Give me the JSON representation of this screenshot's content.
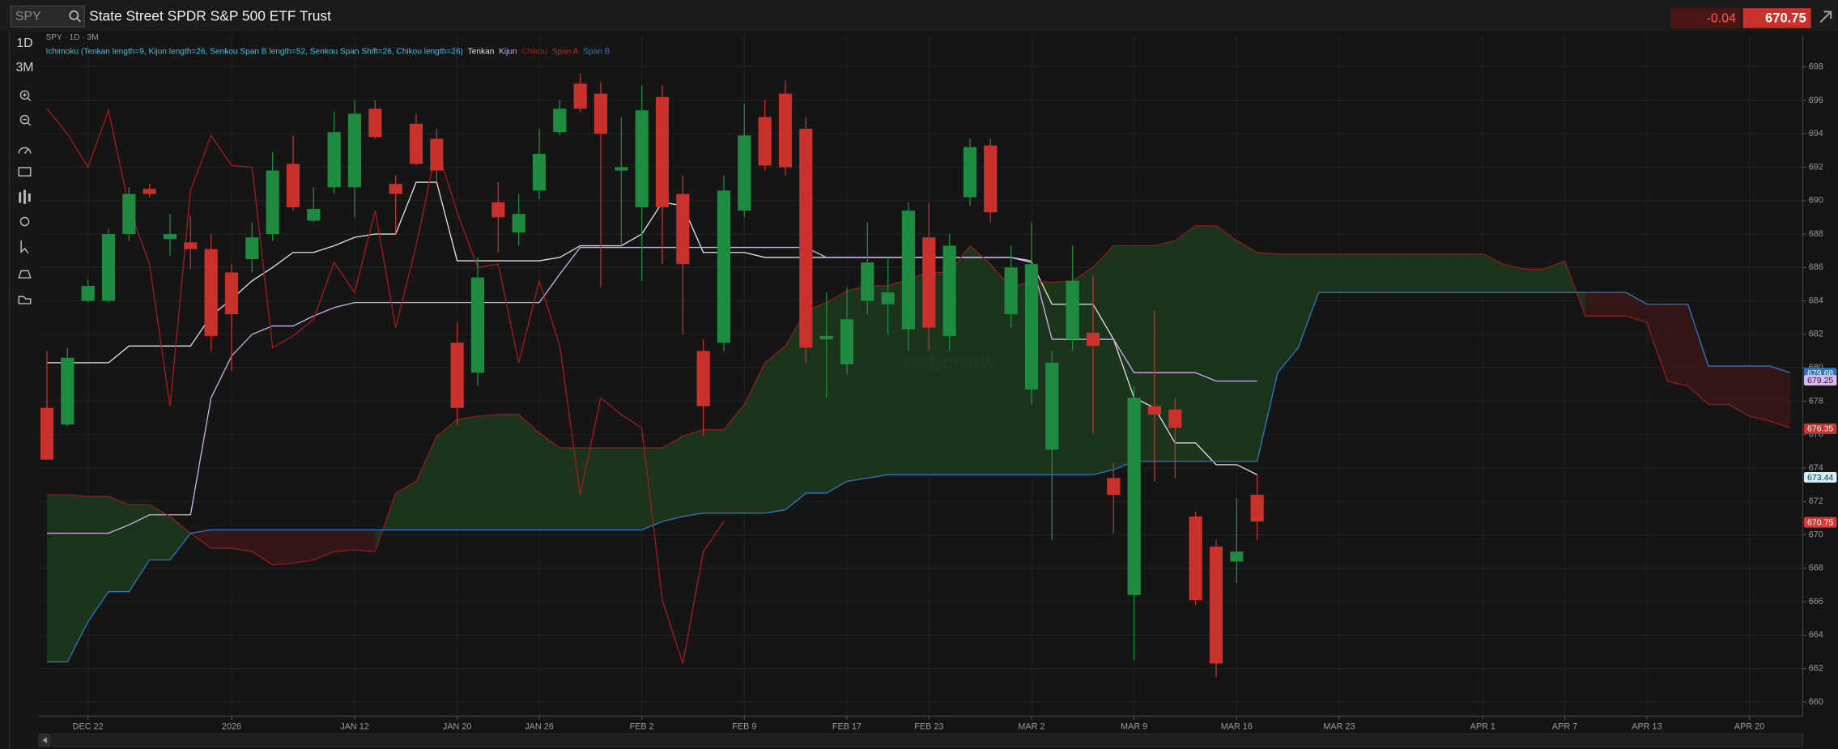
{
  "header": {
    "symbol": "SPY",
    "name": "State Street SPDR S&P 500 ETF Trust",
    "change": "-0.04",
    "price": "670.75"
  },
  "toolbar": {
    "timeframes": [
      "1D",
      "3M"
    ]
  },
  "chart_data": {
    "type": "candlestick",
    "subtitle": "SPY · 1D · 3M",
    "study": "Ichimoku (Tenkan length=9, Kijun length=26, Senkou Span B length=52, Senkou Span Shift=26, Chikou length=26)",
    "watermark": "tastycharts",
    "up_color": "#1f8b41",
    "down_color": "#c8312c",
    "cloud_up_color": "#1c3a1c",
    "cloud_down_color": "#3b1616",
    "open": [
      677.6,
      676.6,
      684.0,
      684.0,
      688.0,
      690.7,
      687.7,
      687.5,
      687.1,
      685.7,
      686.5,
      688.0,
      692.2,
      688.8,
      690.8,
      690.8,
      695.5,
      691.0,
      694.6,
      693.7,
      681.5,
      679.7,
      689.9,
      688.1,
      690.6,
      694.1,
      697.0,
      696.4,
      691.8,
      689.6,
      696.2,
      690.4,
      681.0,
      681.5,
      689.4,
      695.0,
      696.4,
      694.3,
      681.7,
      680.2,
      684.0,
      683.8,
      682.3,
      687.8,
      681.9,
      690.2,
      693.3,
      683.2,
      678.7,
      675.1,
      681.7,
      682.1,
      673.4,
      666.4,
      677.7,
      677.5,
      671.1,
      669.3,
      668.4,
      672.4
    ],
    "high": [
      681.0,
      681.2,
      685.3,
      688.3,
      690.8,
      691.0,
      689.2,
      689.1,
      688.0,
      686.2,
      688.7,
      692.9,
      693.9,
      690.8,
      695.3,
      696.0,
      696.0,
      691.5,
      695.2,
      694.3,
      682.7,
      686.6,
      691.1,
      690.4,
      694.3,
      696.0,
      697.6,
      697.1,
      695.0,
      696.9,
      696.9,
      691.5,
      681.7,
      691.5,
      695.8,
      696.0,
      697.2,
      695.0,
      684.5,
      684.8,
      688.7,
      686.6,
      689.9,
      689.9,
      688.0,
      693.7,
      693.7,
      687.3,
      688.7,
      681.0,
      687.3,
      685.5,
      674.3,
      678.9,
      683.4,
      678.2,
      671.4,
      669.7,
      672.2,
      673.6
    ],
    "low": [
      674.5,
      676.5,
      683.9,
      683.9,
      687.6,
      690.2,
      686.7,
      685.9,
      681.0,
      679.8,
      685.7,
      687.6,
      689.4,
      688.7,
      690.4,
      689.0,
      693.7,
      688.0,
      692.1,
      691.1,
      676.6,
      678.9,
      686.9,
      687.3,
      690.1,
      693.9,
      695.3,
      684.8,
      687.3,
      685.2,
      686.2,
      682.0,
      675.9,
      681.0,
      689.0,
      691.8,
      691.5,
      680.3,
      678.2,
      679.6,
      683.2,
      682.0,
      681.0,
      681.0,
      681.0,
      689.7,
      688.7,
      682.4,
      677.8,
      669.7,
      681.0,
      676.1,
      670.1,
      662.5,
      673.2,
      673.4,
      665.8,
      661.5,
      667.1,
      669.7
    ],
    "close": [
      674.5,
      680.6,
      684.9,
      688.0,
      690.4,
      690.4,
      688.0,
      687.1,
      681.9,
      683.2,
      687.8,
      691.8,
      689.6,
      689.5,
      694.1,
      695.2,
      693.8,
      690.4,
      692.2,
      691.8,
      677.6,
      685.4,
      689.0,
      689.2,
      692.8,
      695.5,
      695.5,
      694.0,
      692.0,
      695.4,
      689.6,
      686.2,
      677.7,
      690.6,
      693.9,
      692.1,
      692.0,
      681.2,
      681.9,
      682.9,
      686.3,
      684.5,
      689.4,
      682.4,
      687.3,
      693.2,
      689.3,
      686.0,
      686.2,
      680.3,
      685.2,
      681.3,
      672.4,
      678.2,
      677.2,
      676.4,
      666.1,
      662.3,
      669.0,
      670.8
    ],
    "series": [
      {
        "name": "Tenkan",
        "color": "#e4e4e4",
        "values": [
          680.3,
          680.3,
          680.3,
          680.3,
          681.3,
          681.3,
          681.3,
          681.3,
          683.1,
          684.1,
          685.2,
          686.0,
          686.9,
          686.9,
          687.3,
          687.8,
          688.0,
          688.0,
          691.1,
          691.1,
          686.4,
          686.4,
          686.4,
          686.4,
          686.4,
          686.6,
          687.3,
          687.3,
          687.3,
          688.0,
          689.9,
          689.7,
          686.9,
          686.9,
          686.9,
          686.6,
          686.6,
          686.6,
          686.6,
          686.6,
          686.6,
          686.6,
          686.6,
          686.6,
          686.6,
          686.6,
          686.6,
          686.6,
          686.3,
          683.8,
          683.8,
          683.8,
          681.7,
          678.2,
          677.6,
          675.5,
          675.5,
          674.2,
          674.2,
          673.6,
          null,
          null,
          null,
          null,
          null,
          null,
          null,
          null,
          null,
          null,
          null,
          null,
          null,
          null,
          null,
          null,
          null,
          null,
          null,
          null,
          null,
          null,
          null,
          null,
          null,
          null
        ]
      },
      {
        "name": "Kijun",
        "color": "#cdb0ec",
        "values": [
          670.1,
          670.1,
          670.1,
          670.1,
          670.6,
          671.2,
          671.2,
          671.2,
          678.2,
          680.7,
          682.0,
          682.5,
          682.5,
          683.1,
          683.6,
          683.9,
          683.9,
          683.9,
          683.9,
          683.9,
          683.9,
          683.9,
          683.9,
          683.9,
          683.9,
          685.6,
          687.2,
          687.2,
          687.2,
          687.2,
          687.2,
          687.2,
          687.2,
          687.2,
          687.2,
          687.2,
          687.2,
          687.2,
          686.6,
          686.6,
          686.6,
          686.6,
          686.6,
          686.6,
          686.6,
          686.6,
          686.6,
          686.6,
          686.4,
          681.7,
          681.7,
          681.7,
          681.7,
          679.7,
          679.7,
          679.7,
          679.7,
          679.2,
          679.2,
          679.2,
          null,
          null,
          null,
          null,
          null,
          null,
          null,
          null,
          null,
          null,
          null,
          null,
          null,
          null,
          null,
          null,
          null,
          null,
          null,
          null,
          null,
          null,
          null,
          null,
          null,
          null
        ]
      },
      {
        "name": "Chikou",
        "color": "#a31c1c",
        "values": [
          695.5,
          694.0,
          692.0,
          695.4,
          689.6,
          686.2,
          677.7,
          690.6,
          693.9,
          692.1,
          692.0,
          681.2,
          681.9,
          682.9,
          686.3,
          684.5,
          689.4,
          682.4,
          687.3,
          693.2,
          689.3,
          686.0,
          686.2,
          680.3,
          685.2,
          681.3,
          672.4,
          678.2,
          677.2,
          676.4,
          666.1,
          662.3,
          669.0,
          670.8,
          null,
          null,
          null,
          null,
          null,
          null,
          null,
          null,
          null,
          null,
          null,
          null,
          null,
          null,
          null,
          null,
          null,
          null,
          null,
          null,
          null,
          null,
          null,
          null,
          null,
          null,
          null,
          null,
          null,
          null,
          null,
          null,
          null,
          null,
          null,
          null,
          null,
          null,
          null,
          null,
          null,
          null,
          null,
          null,
          null,
          null,
          null,
          null,
          null,
          null,
          null,
          null
        ]
      },
      {
        "name": "Span A",
        "color": "#8e1e1e",
        "values": [
          672.4,
          672.4,
          672.3,
          672.3,
          671.8,
          671.8,
          671.1,
          670.1,
          669.2,
          669.2,
          669.0,
          668.2,
          668.3,
          668.5,
          669.0,
          669.1,
          669.0,
          672.5,
          673.2,
          675.9,
          676.9,
          677.1,
          677.2,
          677.2,
          676.1,
          675.2,
          675.2,
          675.2,
          675.2,
          675.2,
          675.2,
          675.9,
          676.3,
          676.3,
          677.8,
          680.3,
          681.3,
          683.4,
          683.9,
          684.6,
          684.9,
          684.9,
          685.3,
          685.7,
          685.7,
          687.3,
          686.2,
          684.8,
          685.2,
          685.1,
          685.2,
          686.0,
          687.3,
          687.3,
          687.3,
          687.6,
          688.5,
          688.5,
          687.6,
          686.9,
          686.8,
          686.8,
          686.8,
          686.8,
          686.8,
          686.8,
          686.8,
          686.8,
          686.8,
          686.8,
          686.8,
          686.2,
          685.9,
          685.9,
          686.4,
          683.1,
          683.1,
          683.1,
          682.7,
          679.2,
          678.9,
          677.8,
          677.8,
          677.1,
          676.8,
          676.4
        ]
      },
      {
        "name": "Span B",
        "color": "#2f78c0",
        "values": [
          662.4,
          662.4,
          664.8,
          666.6,
          666.6,
          668.5,
          668.5,
          670.1,
          670.3,
          670.3,
          670.3,
          670.3,
          670.3,
          670.3,
          670.3,
          670.3,
          670.3,
          670.3,
          670.3,
          670.3,
          670.3,
          670.3,
          670.3,
          670.3,
          670.3,
          670.3,
          670.3,
          670.3,
          670.3,
          670.3,
          670.8,
          671.1,
          671.3,
          671.3,
          671.3,
          671.3,
          671.5,
          672.5,
          672.5,
          673.2,
          673.4,
          673.6,
          673.6,
          673.6,
          673.6,
          673.6,
          673.6,
          673.6,
          673.6,
          673.6,
          673.6,
          673.6,
          673.9,
          674.4,
          674.4,
          674.4,
          674.4,
          674.4,
          674.4,
          674.4,
          679.7,
          681.2,
          684.5,
          684.5,
          684.5,
          684.5,
          684.5,
          684.5,
          684.5,
          684.5,
          684.5,
          684.5,
          684.5,
          684.5,
          684.5,
          684.5,
          684.5,
          684.5,
          683.8,
          683.8,
          683.8,
          680.1,
          680.1,
          680.1,
          680.1,
          679.7
        ]
      }
    ],
    "last_value_labels": [
      {
        "value": 679.68,
        "label": "679.68",
        "color": "#2f78c0",
        "text_color": "#ffffff"
      },
      {
        "value": 679.25,
        "label": "679.25",
        "color": "#d9b8f2",
        "text_color": "#2a1a3a"
      },
      {
        "value": 676.35,
        "label": "676.35",
        "color": "#c8312c",
        "text_color": "#ffffff"
      },
      {
        "value": 673.44,
        "label": "673.44",
        "color": "#cfeffa",
        "text_color": "#123040"
      },
      {
        "value": 670.75,
        "label": "670.75",
        "color": "#d63a34",
        "text_color": "#ffffff"
      }
    ],
    "xlim": [
      -0.4,
      85.6
    ],
    "xticks": [
      {
        "value": 2,
        "label": "DEC 22"
      },
      {
        "value": 9,
        "label": "2026"
      },
      {
        "value": 15,
        "label": "JAN 12"
      },
      {
        "value": 20,
        "label": "JAN 20"
      },
      {
        "value": 24,
        "label": "JAN 26"
      },
      {
        "value": 29,
        "label": "FEB 2"
      },
      {
        "value": 34,
        "label": "FEB 9"
      },
      {
        "value": 39,
        "label": "FEB 17"
      },
      {
        "value": 43,
        "label": "FEB 23"
      },
      {
        "value": 48,
        "label": "MAR 2"
      },
      {
        "value": 53,
        "label": "MAR 9"
      },
      {
        "value": 58,
        "label": "MAR 16"
      },
      {
        "value": 63,
        "label": "MAR 23"
      },
      {
        "value": 70,
        "label": "APR 1"
      },
      {
        "value": 74,
        "label": "APR 7"
      },
      {
        "value": 78,
        "label": "APR 13"
      },
      {
        "value": 83,
        "label": "APR 20"
      }
    ],
    "ylim": [
      659.15,
      699.9
    ],
    "yticks": [
      660,
      662,
      664,
      666,
      668,
      670,
      672,
      674,
      676,
      678,
      680,
      682,
      684,
      686,
      688,
      690,
      692,
      694,
      696,
      698
    ],
    "grid": true
  }
}
